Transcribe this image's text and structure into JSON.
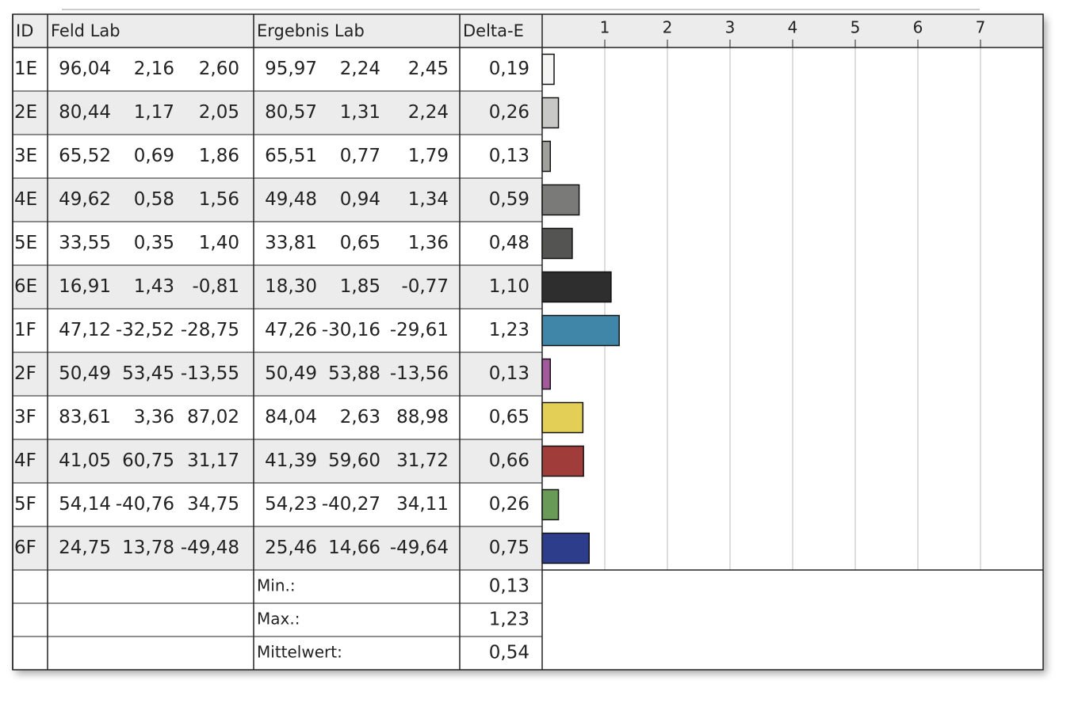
{
  "table": {
    "headers": [
      "ID",
      "Feld Lab",
      "Ergebnis Lab",
      "Delta-E"
    ],
    "rows": [
      {
        "feld": [
          "96,04",
          "2,16",
          "2,60"
        ],
        "ergebnis": [
          "95,97",
          "2,24",
          "2,45"
        ]
      },
      {
        "feld": [
          "80,44",
          "1,17",
          "2,05"
        ],
        "ergebnis": [
          "80,57",
          "1,31",
          "2,24"
        ]
      },
      {
        "feld": [
          "65,52",
          "0,69",
          "1,86"
        ],
        "ergebnis": [
          "65,51",
          "0,77",
          "1,79"
        ]
      },
      {
        "feld": [
          "49,62",
          "0,58",
          "1,56"
        ],
        "ergebnis": [
          "49,48",
          "0,94",
          "1,34"
        ]
      },
      {
        "feld": [
          "33,55",
          "0,35",
          "1,40"
        ],
        "ergebnis": [
          "33,81",
          "0,65",
          "1,36"
        ]
      },
      {
        "feld": [
          "16,91",
          "1,43",
          "-0,81"
        ],
        "ergebnis": [
          "18,30",
          "1,85",
          "-0,77"
        ]
      },
      {
        "feld": [
          "47,12",
          "-32,52",
          "-28,75"
        ],
        "ergebnis": [
          "47,26",
          "-30,16",
          "-29,61"
        ]
      },
      {
        "feld": [
          "50,49",
          "53,45",
          "-13,55"
        ],
        "ergebnis": [
          "50,49",
          "53,88",
          "-13,56"
        ]
      },
      {
        "feld": [
          "83,61",
          "3,36",
          "87,02"
        ],
        "ergebnis": [
          "84,04",
          "2,63",
          "88,98"
        ]
      },
      {
        "feld": [
          "41,05",
          "60,75",
          "31,17"
        ],
        "ergebnis": [
          "41,39",
          "59,60",
          "31,72"
        ]
      },
      {
        "feld": [
          "54,14",
          "-40,76",
          "34,75"
        ],
        "ergebnis": [
          "54,23",
          "-40,27",
          "34,11"
        ]
      },
      {
        "feld": [
          "24,75",
          "13,78",
          "-49,48"
        ],
        "ergebnis": [
          "25,46",
          "14,66",
          "-49,64"
        ]
      }
    ],
    "summary": [
      {
        "label": "Min.:",
        "value": "0,13"
      },
      {
        "label": "Max.:",
        "value": "1,23"
      },
      {
        "label": "Mittelwert:",
        "value": "0,54"
      }
    ]
  },
  "chart_data": {
    "type": "bar",
    "orientation": "horizontal",
    "categories": [
      "1E",
      "2E",
      "3E",
      "4E",
      "5E",
      "6E",
      "1F",
      "2F",
      "3F",
      "4F",
      "5F",
      "6F"
    ],
    "values": [
      0.19,
      0.26,
      0.13,
      0.59,
      0.48,
      1.1,
      1.23,
      0.13,
      0.65,
      0.66,
      0.26,
      0.75
    ],
    "value_labels": [
      "0,19",
      "0,26",
      "0,13",
      "0,59",
      "0,48",
      "1,10",
      "1,23",
      "0,13",
      "0,65",
      "0,66",
      "0,26",
      "0,75"
    ],
    "colors": [
      "#f5f5f3",
      "#c8c8c6",
      "#a0a09c",
      "#7a7a78",
      "#545452",
      "#2e2e2e",
      "#3f86a8",
      "#a35a9c",
      "#e3cf55",
      "#a03c3a",
      "#6a9a58",
      "#2e3c8c"
    ],
    "xlim": [
      0,
      8
    ],
    "xticks": [
      1,
      2,
      3,
      4,
      5,
      6,
      7
    ],
    "grid": true
  }
}
